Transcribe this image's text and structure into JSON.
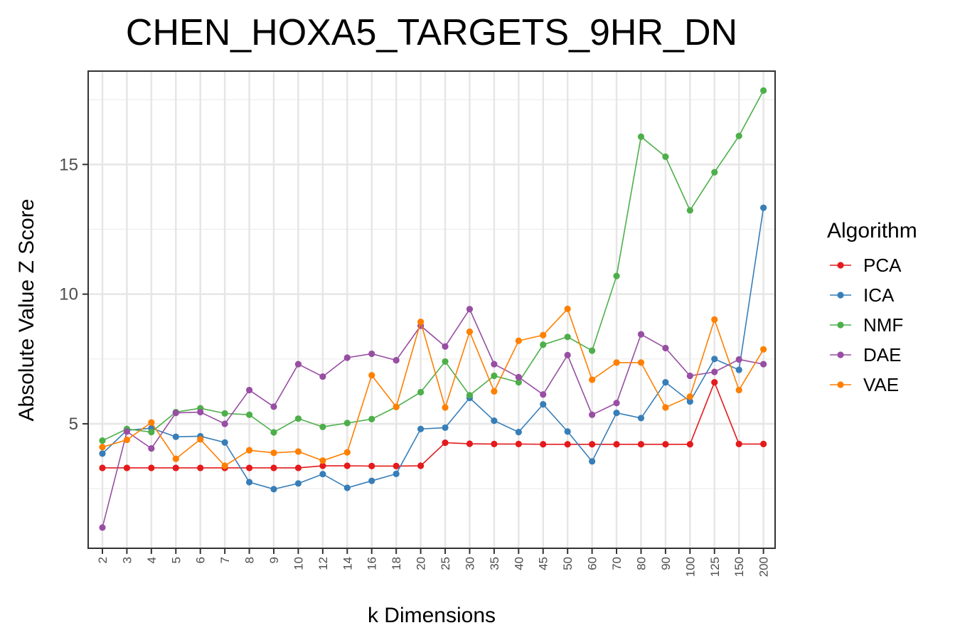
{
  "chart_data": {
    "type": "line",
    "title": "CHEN_HOXA5_TARGETS_9HR_DN",
    "xlabel": "k Dimensions",
    "ylabel": "Absolute Value Z Score",
    "categories": [
      "2",
      "3",
      "4",
      "5",
      "6",
      "7",
      "8",
      "9",
      "10",
      "12",
      "14",
      "16",
      "18",
      "20",
      "25",
      "30",
      "35",
      "40",
      "45",
      "50",
      "60",
      "70",
      "80",
      "90",
      "100",
      "125",
      "150",
      "200"
    ],
    "yticks": [
      "5",
      "10",
      "15"
    ],
    "ylim": [
      0.2,
      18.6
    ],
    "grid": true,
    "legend_position": "right",
    "legend_title": "Algorithm",
    "series": [
      {
        "name": "PCA",
        "color": "#e41a1c",
        "values": [
          3.3,
          3.3,
          3.3,
          3.3,
          3.3,
          3.3,
          3.3,
          3.3,
          3.3,
          3.38,
          3.38,
          3.37,
          3.37,
          3.38,
          4.27,
          4.23,
          4.22,
          4.22,
          4.21,
          4.21,
          4.21,
          4.21,
          4.21,
          4.21,
          4.21,
          6.6,
          4.22,
          4.22
        ]
      },
      {
        "name": "ICA",
        "color": "#377eb8",
        "values": [
          3.85,
          4.75,
          4.83,
          4.5,
          4.52,
          4.28,
          2.75,
          2.48,
          2.7,
          3.06,
          2.53,
          2.8,
          3.07,
          4.8,
          4.85,
          6.0,
          5.12,
          4.68,
          5.75,
          4.7,
          3.55,
          5.42,
          5.22,
          6.6,
          5.86,
          7.5,
          7.08,
          13.33
        ]
      },
      {
        "name": "NMF",
        "color": "#4daf4a",
        "values": [
          4.35,
          4.8,
          4.68,
          5.45,
          5.6,
          5.4,
          5.35,
          4.67,
          5.2,
          4.88,
          5.03,
          5.18,
          5.65,
          6.22,
          7.4,
          6.1,
          6.85,
          6.6,
          8.05,
          8.35,
          7.82,
          10.7,
          16.07,
          15.3,
          13.23,
          14.7,
          16.1,
          17.85
        ]
      },
      {
        "name": "DAE",
        "color": "#984ea3",
        "values": [
          1.0,
          4.7,
          4.05,
          5.42,
          5.45,
          5.0,
          6.3,
          5.66,
          7.3,
          6.82,
          7.55,
          7.7,
          7.45,
          8.78,
          7.98,
          9.42,
          7.3,
          6.8,
          6.13,
          7.65,
          5.35,
          5.8,
          8.45,
          7.92,
          6.85,
          7.0,
          7.48,
          7.3
        ]
      },
      {
        "name": "VAE",
        "color": "#ff7f00",
        "values": [
          4.1,
          4.38,
          5.05,
          3.65,
          4.4,
          3.38,
          3.98,
          3.88,
          3.93,
          3.58,
          3.9,
          6.87,
          5.65,
          8.93,
          5.63,
          8.55,
          6.25,
          8.2,
          8.42,
          9.43,
          6.7,
          7.36,
          7.36,
          5.63,
          6.05,
          9.02,
          6.3,
          7.87
        ]
      }
    ]
  }
}
